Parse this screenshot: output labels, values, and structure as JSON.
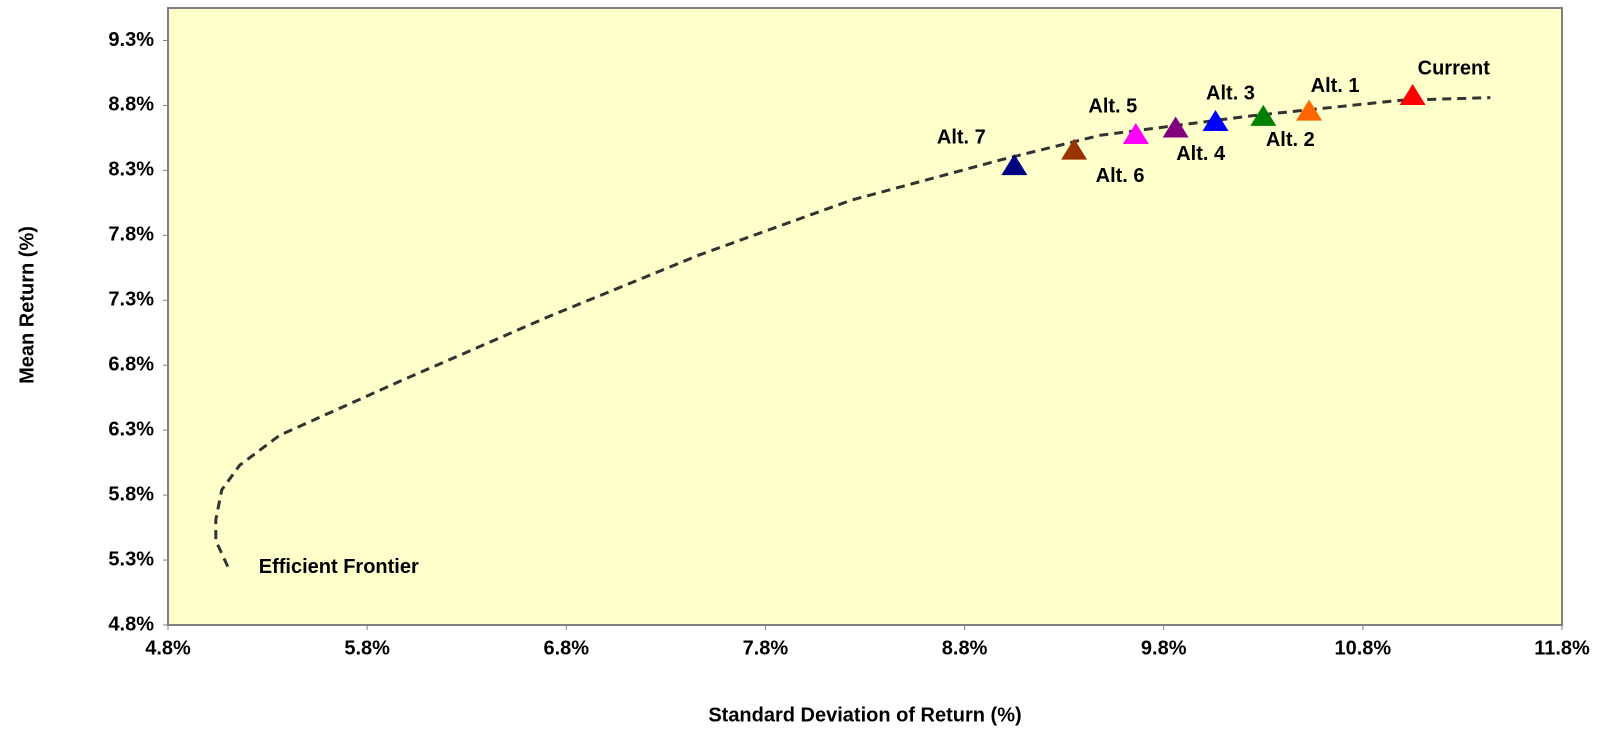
{
  "chart_data": {
    "type": "scatter",
    "x_label": "Standard Deviation of Return (%)",
    "y_label": "Mean Return (%)",
    "xlim": [
      4.8,
      11.8
    ],
    "xticks": [
      {
        "value": 4.8,
        "label": "4.8%"
      },
      {
        "value": 5.8,
        "label": "5.8%"
      },
      {
        "value": 6.8,
        "label": "6.8%"
      },
      {
        "value": 7.8,
        "label": "7.8%"
      },
      {
        "value": 8.8,
        "label": "8.8%"
      },
      {
        "value": 9.8,
        "label": "9.8%"
      },
      {
        "value": 10.8,
        "label": "10.8%"
      },
      {
        "value": 11.8,
        "label": "11.8%"
      }
    ],
    "ylim": [
      4.8,
      9.55
    ],
    "yticks": [
      {
        "value": 4.8,
        "label": "4.8%"
      },
      {
        "value": 5.3,
        "label": "5.3%"
      },
      {
        "value": 5.8,
        "label": "5.8%"
      },
      {
        "value": 6.3,
        "label": "6.3%"
      },
      {
        "value": 6.8,
        "label": "6.8%"
      },
      {
        "value": 7.3,
        "label": "7.3%"
      },
      {
        "value": 7.8,
        "label": "7.8%"
      },
      {
        "value": 8.3,
        "label": "8.3%"
      },
      {
        "value": 8.8,
        "label": "8.8%"
      },
      {
        "value": 9.3,
        "label": "9.3%"
      }
    ],
    "frontier": {
      "name": "Efficient Frontier",
      "color": "#333333",
      "x": [
        5.1,
        5.04,
        5.04,
        5.07,
        5.16,
        5.36,
        5.97,
        6.72,
        7.47,
        8.23,
        8.98,
        9.48,
        10.24,
        10.99,
        11.44
      ],
      "values": [
        5.25,
        5.45,
        5.61,
        5.84,
        6.03,
        6.26,
        6.68,
        7.18,
        7.65,
        8.07,
        8.38,
        8.57,
        8.72,
        8.84,
        8.86
      ]
    },
    "series": [
      {
        "name": "Current",
        "color": "#ff0000",
        "x": [
          11.05
        ],
        "values": [
          8.88
        ]
      },
      {
        "name": "Alt. 1",
        "color": "#ff6600",
        "x": [
          10.53
        ],
        "values": [
          8.76
        ]
      },
      {
        "name": "Alt. 2",
        "color": "#008000",
        "x": [
          10.3
        ],
        "values": [
          8.72
        ]
      },
      {
        "name": "Alt. 3",
        "color": "#0000ff",
        "x": [
          10.06
        ],
        "values": [
          8.68
        ]
      },
      {
        "name": "Alt. 4",
        "color": "#800080",
        "x": [
          9.86
        ],
        "values": [
          8.63
        ]
      },
      {
        "name": "Alt. 5",
        "color": "#ff00ff",
        "x": [
          9.66
        ],
        "values": [
          8.58
        ]
      },
      {
        "name": "Alt. 6",
        "color": "#993300",
        "x": [
          9.35
        ],
        "values": [
          8.46
        ]
      },
      {
        "name": "Alt. 7",
        "color": "#000080",
        "x": [
          9.05
        ],
        "values": [
          8.34
        ]
      }
    ]
  }
}
